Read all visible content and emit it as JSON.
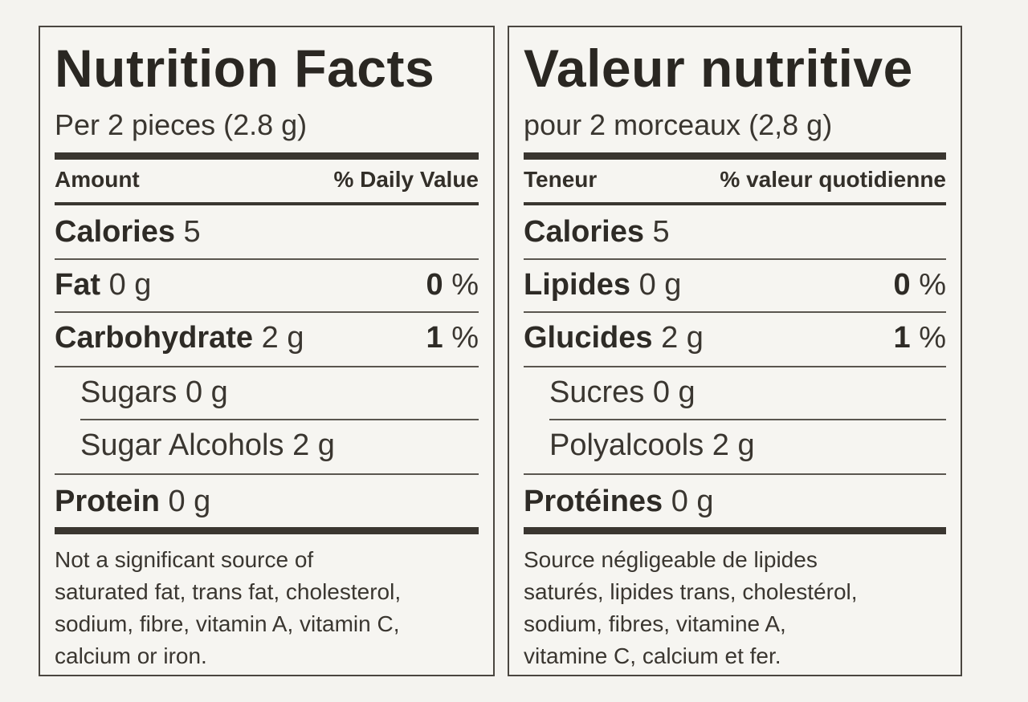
{
  "english": {
    "title": "Nutrition Facts",
    "serving": "Per 2 pieces (2.8 g)",
    "header_left": "Amount",
    "header_right": "% Daily Value",
    "calories": {
      "name": "Calories",
      "amount": "5"
    },
    "fat": {
      "name": "Fat",
      "amount": "0 g",
      "dv": "0",
      "pct": "%"
    },
    "carbohydrate": {
      "name": "Carbohydrate",
      "amount": "2 g",
      "dv": "1",
      "pct": "%"
    },
    "sugars": {
      "name": "Sugars",
      "amount": "0 g"
    },
    "sugar_alcohols": {
      "name": "Sugar Alcohols",
      "amount": "2 g"
    },
    "protein": {
      "name": "Protein",
      "amount": "0 g"
    },
    "footnote": "Not a significant source of\nsaturated fat, trans fat, cholesterol,\nsodium, fibre, vitamin A, vitamin C,\ncalcium or iron."
  },
  "french": {
    "title": "Valeur nutritive",
    "serving": "pour 2 morceaux (2,8 g)",
    "header_left": "Teneur",
    "header_right": "% valeur quotidienne",
    "calories": {
      "name": "Calories",
      "amount": "5"
    },
    "fat": {
      "name": "Lipides",
      "amount": "0 g",
      "dv": "0",
      "pct": "%"
    },
    "carbohydrate": {
      "name": "Glucides",
      "amount": "2 g",
      "dv": "1",
      "pct": "%"
    },
    "sugars": {
      "name": "Sucres",
      "amount": "0 g"
    },
    "sugar_alcohols": {
      "name": "Polyalcools",
      "amount": "2 g"
    },
    "protein": {
      "name": "Protéines",
      "amount": "0 g"
    },
    "footnote": "Source négligeable de lipides\nsaturés, lipides trans, cholestérol,\nsodium, fibres, vitamine A,\nvitamine C, calcium et fer."
  }
}
